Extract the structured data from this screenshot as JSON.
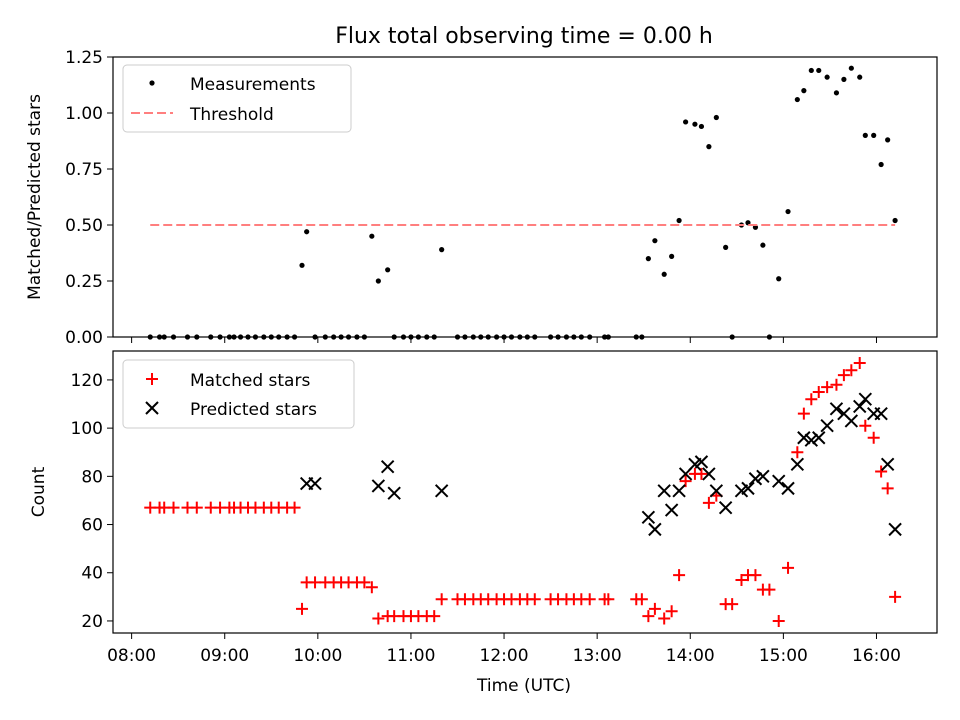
{
  "figure": {
    "title": "Flux total observing time = 0.00 h"
  },
  "chart_data": [
    {
      "type": "scatter",
      "title": "Flux total observing time = 0.00 h",
      "xlabel": "",
      "ylabel": "Matched/Predicted stars",
      "x_unit": "hours UTC",
      "xlim": [
        7.8,
        16.65
      ],
      "ylim": [
        0,
        1.25
      ],
      "yticks": [
        0.0,
        0.25,
        0.5,
        0.75,
        1.0,
        1.25
      ],
      "ytick_labels": [
        "0.00",
        "0.25",
        "0.50",
        "0.75",
        "1.00",
        "1.25"
      ],
      "xticks": [
        8,
        9,
        10,
        11,
        12,
        13,
        14,
        15,
        16
      ],
      "legend": "top-left",
      "grid": false,
      "series": [
        {
          "name": "Measurements",
          "style": "dots",
          "color": "#000000",
          "x": [
            8.2,
            8.3,
            8.35,
            8.45,
            8.6,
            8.7,
            8.85,
            8.95,
            9.05,
            9.1,
            9.17,
            9.25,
            9.33,
            9.42,
            9.5,
            9.58,
            9.67,
            9.75,
            9.83,
            9.88,
            9.97,
            10.08,
            10.17,
            10.25,
            10.33,
            10.42,
            10.5,
            10.58,
            10.65,
            10.75,
            10.82,
            10.92,
            11.0,
            11.08,
            11.17,
            11.25,
            11.33,
            11.5,
            11.58,
            11.67,
            11.75,
            11.83,
            11.92,
            12.0,
            12.08,
            12.17,
            12.25,
            12.33,
            12.5,
            12.58,
            12.67,
            12.75,
            12.83,
            12.92,
            13.08,
            13.12,
            13.42,
            13.48,
            13.55,
            13.62,
            13.72,
            13.8,
            13.88,
            13.95,
            14.05,
            14.12,
            14.2,
            14.28,
            14.38,
            14.45,
            14.55,
            14.62,
            14.7,
            14.78,
            14.85,
            14.95,
            15.05,
            15.15,
            15.22,
            15.3,
            15.38,
            15.47,
            15.57,
            15.65,
            15.73,
            15.82,
            15.88,
            15.97,
            16.05,
            16.12,
            16.2
          ],
          "y": [
            0,
            0,
            0,
            0,
            0,
            0,
            0,
            0,
            0,
            0,
            0,
            0,
            0,
            0,
            0,
            0,
            0,
            0,
            0.32,
            0.47,
            0,
            0,
            0,
            0,
            0,
            0,
            0,
            0.45,
            0.25,
            0.3,
            0,
            0,
            0,
            0,
            0,
            0,
            0.39,
            0,
            0,
            0,
            0,
            0,
            0,
            0,
            0,
            0,
            0,
            0,
            0,
            0,
            0,
            0,
            0,
            0,
            0,
            0,
            0,
            0,
            0.35,
            0.43,
            0.28,
            0.36,
            0.52,
            0.96,
            0.95,
            0.94,
            0.85,
            0.98,
            0.4,
            0,
            0.5,
            0.51,
            0.49,
            0.41,
            0,
            0.26,
            0.56,
            1.06,
            1.1,
            1.19,
            1.19,
            1.16,
            1.09,
            1.15,
            1.2,
            1.16,
            0.9,
            0.9,
            0.77,
            0.88,
            0.52
          ]
        },
        {
          "name": "Threshold",
          "style": "dashed-line",
          "color": "#ff7f7f",
          "x": [
            8.2,
            16.2
          ],
          "y": [
            0.5,
            0.5
          ]
        }
      ]
    },
    {
      "type": "scatter",
      "title": "",
      "xlabel": "Time (UTC)",
      "ylabel": "Count",
      "x_unit": "hours UTC",
      "xlim": [
        7.8,
        16.65
      ],
      "ylim": [
        15,
        132
      ],
      "yticks": [
        20,
        40,
        60,
        80,
        100,
        120
      ],
      "ytick_labels": [
        "20",
        "40",
        "60",
        "80",
        "100",
        "120"
      ],
      "xticks": [
        8,
        9,
        10,
        11,
        12,
        13,
        14,
        15,
        16
      ],
      "xtick_labels": [
        "08:00",
        "09:00",
        "10:00",
        "11:00",
        "12:00",
        "13:00",
        "14:00",
        "15:00",
        "16:00"
      ],
      "legend": "top-left",
      "grid": false,
      "series": [
        {
          "name": "Matched stars",
          "style": "plus",
          "color": "#ff0000",
          "x": [
            8.2,
            8.3,
            8.35,
            8.45,
            8.6,
            8.7,
            8.85,
            8.95,
            9.05,
            9.1,
            9.17,
            9.25,
            9.33,
            9.42,
            9.5,
            9.58,
            9.67,
            9.75,
            9.83,
            9.88,
            9.97,
            10.08,
            10.17,
            10.25,
            10.33,
            10.42,
            10.5,
            10.58,
            10.65,
            10.75,
            10.82,
            10.92,
            11.0,
            11.08,
            11.17,
            11.25,
            11.33,
            11.5,
            11.58,
            11.67,
            11.75,
            11.83,
            11.92,
            12.0,
            12.08,
            12.17,
            12.25,
            12.33,
            12.5,
            12.58,
            12.67,
            12.75,
            12.83,
            12.92,
            13.08,
            13.12,
            13.42,
            13.48,
            13.55,
            13.62,
            13.72,
            13.8,
            13.88,
            13.95,
            14.05,
            14.12,
            14.2,
            14.28,
            14.38,
            14.45,
            14.55,
            14.62,
            14.7,
            14.78,
            14.85,
            14.95,
            15.05,
            15.15,
            15.22,
            15.3,
            15.38,
            15.47,
            15.57,
            15.65,
            15.73,
            15.82,
            15.88,
            15.97,
            16.05,
            16.12,
            16.2
          ],
          "y": [
            67,
            67,
            67,
            67,
            67,
            67,
            67,
            67,
            67,
            67,
            67,
            67,
            67,
            67,
            67,
            67,
            67,
            67,
            25,
            36,
            36,
            36,
            36,
            36,
            36,
            36,
            36,
            34,
            21,
            22,
            22,
            22,
            22,
            22,
            22,
            22,
            29,
            29,
            29,
            29,
            29,
            29,
            29,
            29,
            29,
            29,
            29,
            29,
            29,
            29,
            29,
            29,
            29,
            29,
            29,
            29,
            29,
            29,
            22,
            25,
            21,
            24,
            39,
            78,
            81,
            81,
            69,
            72,
            27,
            27,
            37,
            39,
            39,
            33,
            33,
            20,
            42,
            90,
            106,
            112,
            115,
            117,
            118,
            122,
            124,
            127,
            101,
            96,
            82,
            75,
            30
          ]
        },
        {
          "name": "Predicted stars",
          "style": "x",
          "color": "#000000",
          "x": [
            9.88,
            9.97,
            10.65,
            10.75,
            10.82,
            11.33,
            13.55,
            13.62,
            13.72,
            13.8,
            13.88,
            13.95,
            14.05,
            14.12,
            14.2,
            14.28,
            14.38,
            14.55,
            14.62,
            14.7,
            14.78,
            14.95,
            15.05,
            15.15,
            15.22,
            15.3,
            15.38,
            15.47,
            15.57,
            15.65,
            15.73,
            15.82,
            15.88,
            15.97,
            16.05,
            16.12,
            16.2
          ],
          "y": [
            77,
            77,
            76,
            84,
            73,
            74,
            63,
            58,
            74,
            66,
            74,
            81,
            85,
            86,
            81,
            74,
            67,
            74,
            75,
            79,
            80,
            78,
            75,
            85,
            96,
            95,
            96,
            101,
            108,
            106,
            103,
            109,
            112,
            106,
            106,
            85,
            58
          ]
        }
      ]
    }
  ]
}
